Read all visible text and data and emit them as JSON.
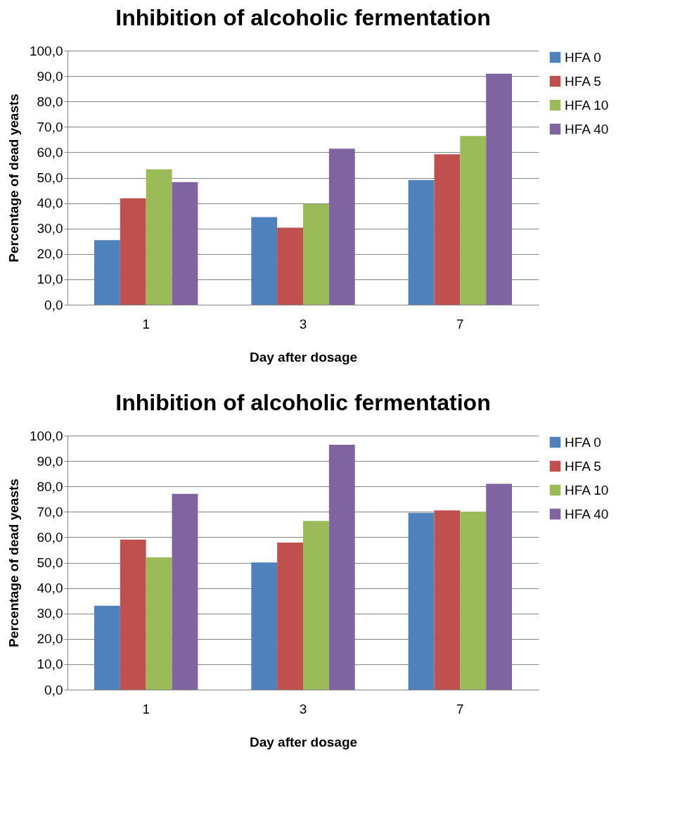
{
  "chart_data": [
    {
      "type": "bar",
      "title": "Inhibition of alcoholic fermentation",
      "xlabel": "Day after dosage",
      "ylabel": "Percentage of dead yeasts",
      "categories": [
        "1",
        "3",
        "7"
      ],
      "ylim": [
        0,
        100
      ],
      "yticks": [
        {
          "value": 0,
          "label": "0,0"
        },
        {
          "value": 10,
          "label": "10,0"
        },
        {
          "value": 20,
          "label": "20,0"
        },
        {
          "value": 30,
          "label": "30,0"
        },
        {
          "value": 40,
          "label": "40,0"
        },
        {
          "value": 50,
          "label": "50,0"
        },
        {
          "value": 60,
          "label": "60,0"
        },
        {
          "value": 70,
          "label": "70,0"
        },
        {
          "value": 80,
          "label": "80,0"
        },
        {
          "value": 90,
          "label": "90,0"
        },
        {
          "value": 100,
          "label": "100,0"
        }
      ],
      "grid": "y",
      "legend": "right",
      "series": [
        {
          "name": "HFA 0",
          "color": "#4f81bd",
          "values": [
            25.4,
            34.5,
            49.1
          ]
        },
        {
          "name": "HFA 5",
          "color": "#c0504d",
          "values": [
            41.9,
            30.3,
            59.2
          ]
        },
        {
          "name": "HFA 10",
          "color": "#9bbb59",
          "values": [
            53.3,
            39.6,
            66.4
          ]
        },
        {
          "name": "HFA 40",
          "color": "#8064a2",
          "values": [
            48.3,
            61.4,
            90.9
          ]
        }
      ]
    },
    {
      "type": "bar",
      "title": "Inhibition of alcoholic fermentation",
      "xlabel": "Day after dosage",
      "ylabel": "Percentage of dead yeasts",
      "categories": [
        "1",
        "3",
        "7"
      ],
      "ylim": [
        0,
        100
      ],
      "yticks": [
        {
          "value": 0,
          "label": "0,0"
        },
        {
          "value": 10,
          "label": "10,0"
        },
        {
          "value": 20,
          "label": "20,0"
        },
        {
          "value": 30,
          "label": "30,0"
        },
        {
          "value": 40,
          "label": "40,0"
        },
        {
          "value": 50,
          "label": "50,0"
        },
        {
          "value": 60,
          "label": "60,0"
        },
        {
          "value": 70,
          "label": "70,0"
        },
        {
          "value": 80,
          "label": "80,0"
        },
        {
          "value": 90,
          "label": "90,0"
        },
        {
          "value": 100,
          "label": "100,0"
        }
      ],
      "grid": "y",
      "legend": "right",
      "series": [
        {
          "name": "HFA 0",
          "color": "#4f81bd",
          "values": [
            33.0,
            50.1,
            69.6
          ]
        },
        {
          "name": "HFA 5",
          "color": "#c0504d",
          "values": [
            59.1,
            57.9,
            70.6
          ]
        },
        {
          "name": "HFA 10",
          "color": "#9bbb59",
          "values": [
            52.1,
            66.4,
            70.1
          ]
        },
        {
          "name": "HFA 40",
          "color": "#8064a2",
          "values": [
            77.1,
            96.4,
            81.0
          ]
        }
      ]
    }
  ]
}
